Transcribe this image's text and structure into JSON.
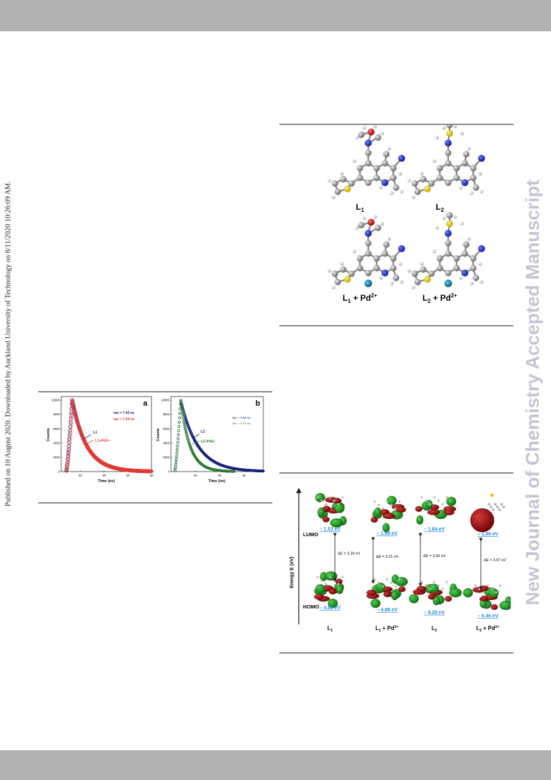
{
  "sidebar_left": "Published on 10 August 2020. Downloaded by Auckland University of Technology on 8/11/2020 10:26:09 AM.",
  "sidebar_right": "New Journal of Chemistry Accepted Manuscript",
  "structures_figure": {
    "labels": [
      "L1",
      "L2",
      "L1 + Pd2+",
      "L2 + Pd2+"
    ]
  },
  "decay_figure": {
    "panel_a": {
      "letter": "a",
      "tau1": "τav = 7.43 ns",
      "tau2": "τav = 7.24 ns",
      "label1": "L1",
      "label2": "L1+Pd2+",
      "xlabel": "Time (ns)",
      "ylabel": "Counts",
      "xticks": [
        "20",
        "30",
        "40",
        "50"
      ],
      "yticks": [
        "0",
        "2000",
        "4000",
        "6000",
        "8000",
        "10000"
      ]
    },
    "panel_b": {
      "letter": "b",
      "tau1": "τav = 7.94 ns",
      "tau2": "τav = 4.74 ns",
      "label1": "L2",
      "label2": "L2+Pd2+",
      "xlabel": "Time (ns)",
      "ylabel": "Counts",
      "xticks": [
        "20",
        "30",
        "40"
      ],
      "yticks": [
        "0",
        "2000",
        "4000",
        "6000",
        "8000",
        "10000"
      ]
    }
  },
  "orbital_figure": {
    "yaxis": "Energy E (eV)",
    "lumo_label": "LUMO",
    "homo_label": "HOMO",
    "columns": [
      {
        "name": "L1",
        "lumo": "– 1.53 eV",
        "homo": "– 4.82 eV",
        "gap": "ΔE = 3.29 eV"
      },
      {
        "name": "L1 + Pd2+",
        "lumo": "– 1.68 eV",
        "homo": "– 4.89 eV",
        "gap": "ΔE = 3.21 eV"
      },
      {
        "name": "L2",
        "lumo": "– 1.64 eV",
        "homo": "– 5.20 eV",
        "gap": "ΔE = 3.56 eV"
      },
      {
        "name": "L2 + Pd2+",
        "lumo": "– 1.89 eV",
        "homo": "– 5.46 eV",
        "gap": "ΔE = 3.57 eV"
      }
    ]
  },
  "colors": {
    "header_bar": "#b3b3b3",
    "series_blue": "#1a237e",
    "series_red": "#e53935",
    "series_green": "#2e7d32",
    "energy_label": "#1e88e5",
    "orbital_red": "#8b0000",
    "orbital_green": "#1b8c1b"
  }
}
